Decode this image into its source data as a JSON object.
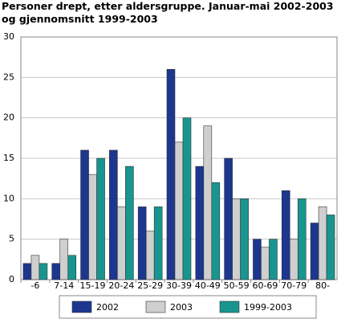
{
  "chart_data": {
    "type": "bar",
    "title": "Personer drept, etter aldersgruppe. Januar-mai 2002-2003 og gjennomsnitt 1999-2003",
    "categories": [
      "-6",
      "7-14",
      "15-19",
      "20-24",
      "25-29",
      "30-39",
      "40-49",
      "50-59",
      "60-69",
      "70-79",
      "80-"
    ],
    "series": [
      {
        "name": "2002",
        "color": "#1d3690",
        "values": [
          2,
          2,
          16,
          16,
          9,
          26,
          14,
          15,
          5,
          11,
          7
        ]
      },
      {
        "name": "2003",
        "color": "#cfcfcf",
        "values": [
          3,
          5,
          13,
          9,
          6,
          17,
          19,
          10,
          4,
          5,
          9
        ]
      },
      {
        "name": "1999-2003",
        "color": "#18958f",
        "values": [
          2,
          3,
          15,
          14,
          9,
          20,
          12,
          10,
          5,
          10,
          8
        ]
      }
    ],
    "ylim": [
      0,
      30
    ],
    "yticks": [
      0,
      5,
      10,
      15,
      20,
      25,
      30
    ],
    "grid": true
  }
}
